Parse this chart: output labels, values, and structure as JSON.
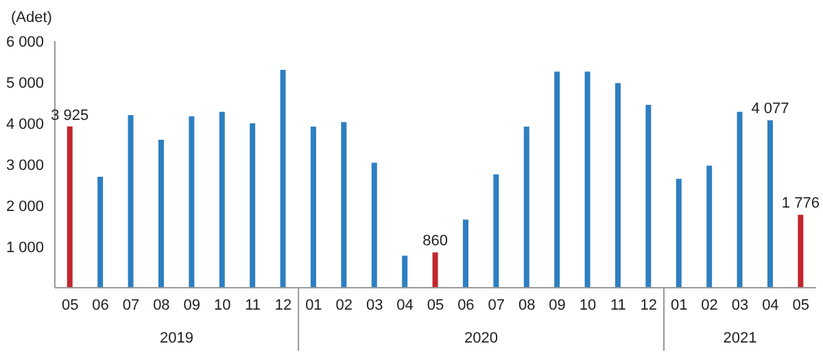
{
  "chart_data": {
    "type": "bar",
    "ylabel": "(Adet)",
    "categories": [
      "05",
      "06",
      "07",
      "08",
      "09",
      "10",
      "11",
      "12",
      "01",
      "02",
      "03",
      "04",
      "05",
      "06",
      "07",
      "08",
      "09",
      "10",
      "11",
      "12",
      "01",
      "02",
      "03",
      "04",
      "05"
    ],
    "values": [
      3925,
      2700,
      4200,
      3600,
      4170,
      4280,
      4000,
      5300,
      3920,
      4030,
      3040,
      780,
      860,
      1660,
      2760,
      3920,
      5260,
      5260,
      4980,
      4450,
      2650,
      2970,
      4280,
      4077,
      1776
    ],
    "colors": [
      "#c0272d",
      "#2e7fc1",
      "#2e7fc1",
      "#2e7fc1",
      "#2e7fc1",
      "#2e7fc1",
      "#2e7fc1",
      "#2e7fc1",
      "#2e7fc1",
      "#2e7fc1",
      "#2e7fc1",
      "#2e7fc1",
      "#c0272d",
      "#2e7fc1",
      "#2e7fc1",
      "#2e7fc1",
      "#2e7fc1",
      "#2e7fc1",
      "#2e7fc1",
      "#2e7fc1",
      "#2e7fc1",
      "#2e7fc1",
      "#2e7fc1",
      "#2e7fc1",
      "#c0272d"
    ],
    "value_labels": [
      "3 925",
      null,
      null,
      null,
      null,
      null,
      null,
      null,
      null,
      null,
      null,
      null,
      "860",
      null,
      null,
      null,
      null,
      null,
      null,
      null,
      null,
      null,
      null,
      "4 077",
      "1 776"
    ],
    "annotations": [
      "2019",
      "2020",
      "2021"
    ],
    "ylim": [
      0,
      6000
    ],
    "yticks": [
      {
        "value": 0,
        "label": null
      },
      {
        "value": 1000,
        "label": "1 000"
      },
      {
        "value": 2000,
        "label": "2 000"
      },
      {
        "value": 3000,
        "label": "3 000"
      },
      {
        "value": 4000,
        "label": "4 000"
      },
      {
        "value": 5000,
        "label": "5 000"
      },
      {
        "value": 6000,
        "label": "6 000"
      }
    ],
    "grid": false,
    "legend": false
  }
}
